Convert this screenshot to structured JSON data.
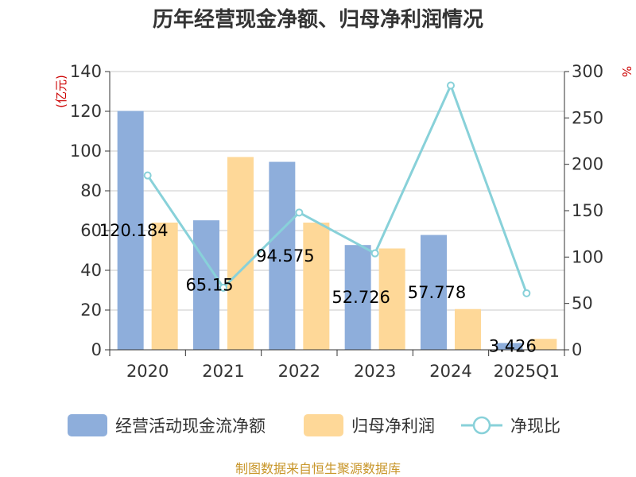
{
  "chart_data": {
    "type": "bar",
    "title": "历年经营现金净额、归母净利润情况",
    "categories": [
      "2020",
      "2021",
      "2022",
      "2023",
      "2024",
      "2025Q1"
    ],
    "series": [
      {
        "name": "经营活动现金流净额",
        "kind": "bar",
        "axis": "left",
        "color": "#8eaedb",
        "values": [
          120.184,
          65.15,
          94.575,
          52.726,
          57.778,
          3.426
        ]
      },
      {
        "name": "归母净利润",
        "kind": "bar",
        "axis": "left",
        "color": "#fed898",
        "values": [
          64,
          97,
          64,
          51,
          20.5,
          5.5
        ]
      },
      {
        "name": "净现比",
        "kind": "line",
        "axis": "right",
        "color": "#88d1d9",
        "values": [
          188,
          67,
          148,
          104,
          285,
          61
        ]
      }
    ],
    "data_labels": [
      "120.184",
      "65.15",
      "94.575",
      "52.726",
      "57.778",
      "3.426"
    ],
    "y_left": {
      "unit": "(亿元)",
      "ylim": [
        0,
        140
      ],
      "ticks": [
        "0",
        "20",
        "40",
        "60",
        "80",
        "100",
        "120",
        "140"
      ]
    },
    "y_right": {
      "unit": "%",
      "ylim": [
        0,
        300
      ],
      "ticks": [
        "0",
        "50",
        "100",
        "150",
        "200",
        "250",
        "300"
      ]
    },
    "legend_position": "bottom",
    "source": "制图数据来自恒生聚源数据库"
  }
}
